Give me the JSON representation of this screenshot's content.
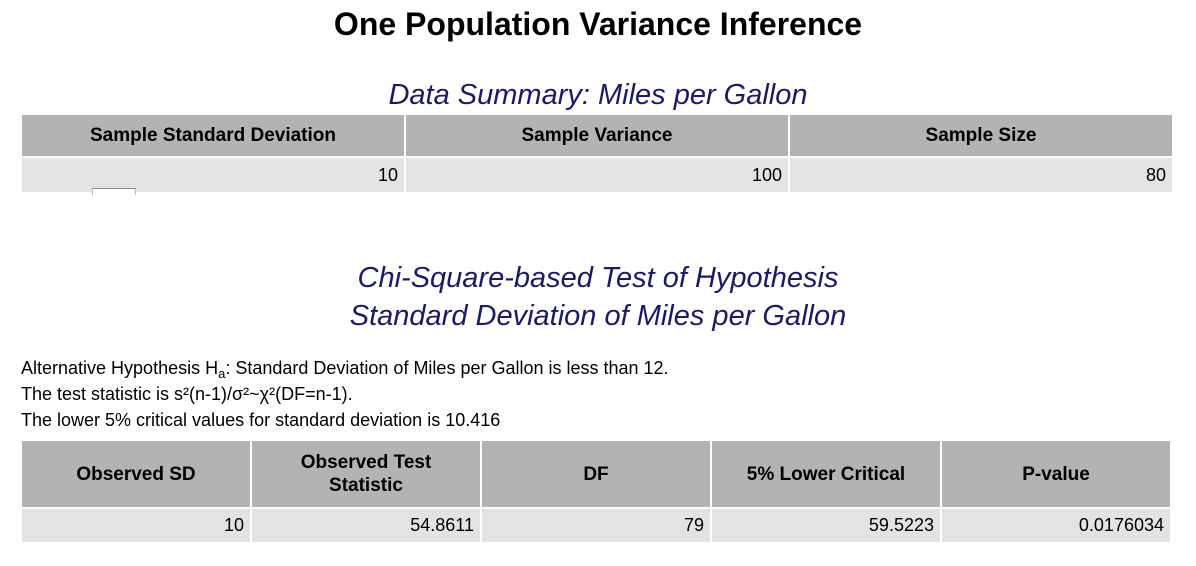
{
  "page": {
    "title": "One Population Variance Inference"
  },
  "summary": {
    "title": "Data Summary: Miles per Gallon",
    "headers": [
      "Sample Standard Deviation",
      "Sample Variance",
      "Sample Size"
    ],
    "values": [
      "10",
      "100",
      "80"
    ]
  },
  "test": {
    "title_line1": "Chi-Square-based Test of Hypothesis",
    "title_line2": "Standard Deviation of Miles per Gallon",
    "hypothesis_prefix": "Alternative Hypothesis H",
    "hypothesis_sub": "a",
    "hypothesis_rest": ": Standard Deviation of Miles per Gallon is less than 12.",
    "statistic_line": "The test statistic is s²(n-1)/σ²~χ²(DF=n-1).",
    "critical_line": "The lower 5% critical values for standard deviation is 10.416",
    "headers": {
      "observed_sd": "Observed SD",
      "observed_test_line1": "Observed Test",
      "observed_test_line2": "Statistic",
      "df": "DF",
      "lower_critical": "5% Lower Critical",
      "p_value": "P-value"
    },
    "values": {
      "observed_sd": "10",
      "observed_test": "54.8611",
      "df": "79",
      "lower_critical": "59.5223",
      "p_value": "0.0176034"
    }
  }
}
